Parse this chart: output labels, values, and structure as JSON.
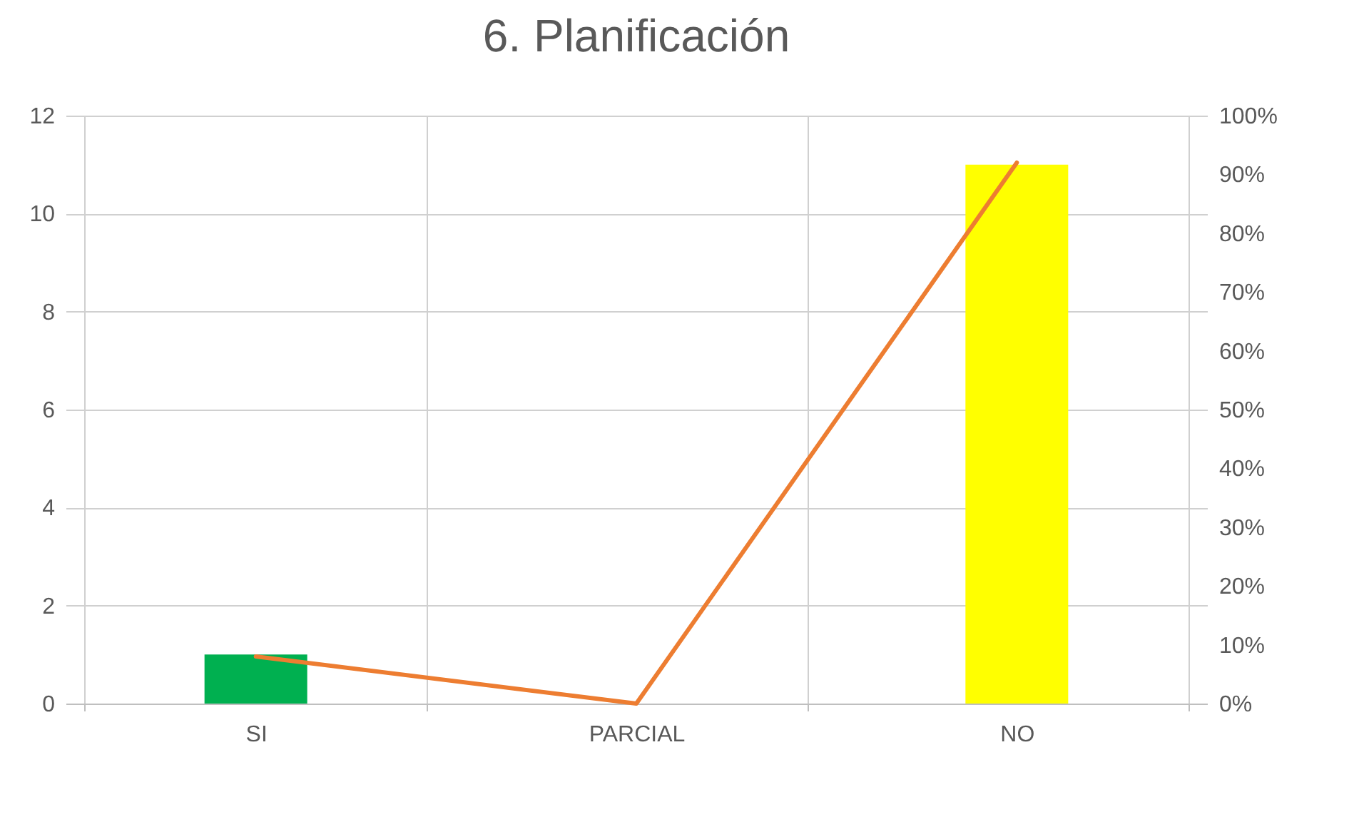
{
  "chart_data": {
    "type": "bar",
    "title": "6. Planificación",
    "categories": [
      "SI",
      "PARCIAL",
      "NO"
    ],
    "series": [
      {
        "colors": [
          "#00b050",
          "#00b050",
          "#ffff00"
        ],
        "values": [
          1,
          0,
          11
        ]
      },
      {
        "type": "line",
        "axis": "y2",
        "color": "#ed7d31",
        "values": [
          8,
          0,
          92
        ]
      }
    ],
    "ylim": [
      0,
      12
    ],
    "yticks": [
      0,
      2,
      4,
      6,
      8,
      10,
      12
    ],
    "y2lim": [
      0,
      100
    ],
    "y2ticks": [
      {
        "value": 0,
        "label": "0%"
      },
      {
        "value": 10,
        "label": "10%"
      },
      {
        "value": 20,
        "label": "20%"
      },
      {
        "value": 30,
        "label": "30%"
      },
      {
        "value": 40,
        "label": "40%"
      },
      {
        "value": 50,
        "label": "50%"
      },
      {
        "value": 60,
        "label": "60%"
      },
      {
        "value": 70,
        "label": "70%"
      },
      {
        "value": 80,
        "label": "80%"
      },
      {
        "value": 90,
        "label": "90%"
      },
      {
        "value": 100,
        "label": "100%"
      }
    ],
    "grid": true
  }
}
